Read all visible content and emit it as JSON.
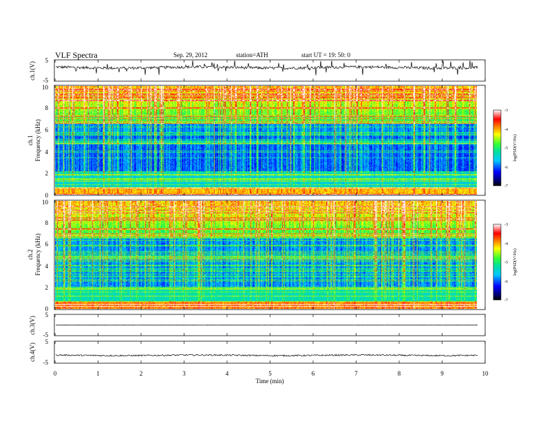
{
  "header": {
    "title": "VLF  Spectra",
    "date": "Sep. 29, 2012",
    "station": "station=ATH",
    "start": "start  UT  =    19: 50: 0"
  },
  "chart_data": [
    {
      "type": "line",
      "name": "ch1",
      "ylabel": "ch.1(V)",
      "ylim": [
        -5,
        5
      ],
      "yticks": [
        "5",
        "-5"
      ],
      "baseline": 1.5,
      "noise_amplitude": 0.7,
      "spike_amplitude": 3.5
    },
    {
      "type": "heatmap",
      "name": "ch1-spectrogram",
      "ylabel_channel": "ch.1",
      "ylabel": "Frequency  (kHz)",
      "ylim": [
        0,
        10
      ],
      "yticks": [
        "0",
        "2",
        "4",
        "6",
        "8",
        "10"
      ],
      "colorbar": {
        "label": "log(PSD(V²/Hz)",
        "range": [
          -7,
          -3
        ],
        "ticks": [
          "-3",
          "-4",
          "-5",
          "-6",
          "-7"
        ]
      }
    },
    {
      "type": "heatmap",
      "name": "ch2-spectrogram",
      "ylabel_channel": "ch.2",
      "ylabel": "Frequency  (kHz)",
      "ylim": [
        0,
        10
      ],
      "yticks": [
        "0",
        "2",
        "4",
        "6",
        "8",
        "10"
      ],
      "colorbar": {
        "label": "log(PSD(V²/Hz)",
        "range": [
          -7,
          -3
        ],
        "ticks": [
          "-3",
          "-4",
          "-5",
          "-6",
          "-7"
        ]
      }
    },
    {
      "type": "line",
      "name": "ch3",
      "ylabel": "ch.3(V)",
      "ylim": [
        -5,
        5
      ],
      "yticks": [
        "5",
        "-5"
      ],
      "baseline": 0,
      "noise_amplitude": 0.05,
      "spike_amplitude": 0
    },
    {
      "type": "line",
      "name": "ch4",
      "ylabel": "ch.4(V)",
      "ylim": [
        -5,
        5
      ],
      "yticks": [
        "5",
        "-5"
      ],
      "baseline": -1.5,
      "noise_amplitude": 0.35,
      "spike_amplitude": 0
    }
  ],
  "x_axis": {
    "label": "Time  (min)",
    "range": [
      0,
      10
    ],
    "ticks": [
      "0",
      "1",
      "2",
      "3",
      "4",
      "5",
      "6",
      "7",
      "8",
      "9",
      "10"
    ],
    "data_end": 9.83
  }
}
